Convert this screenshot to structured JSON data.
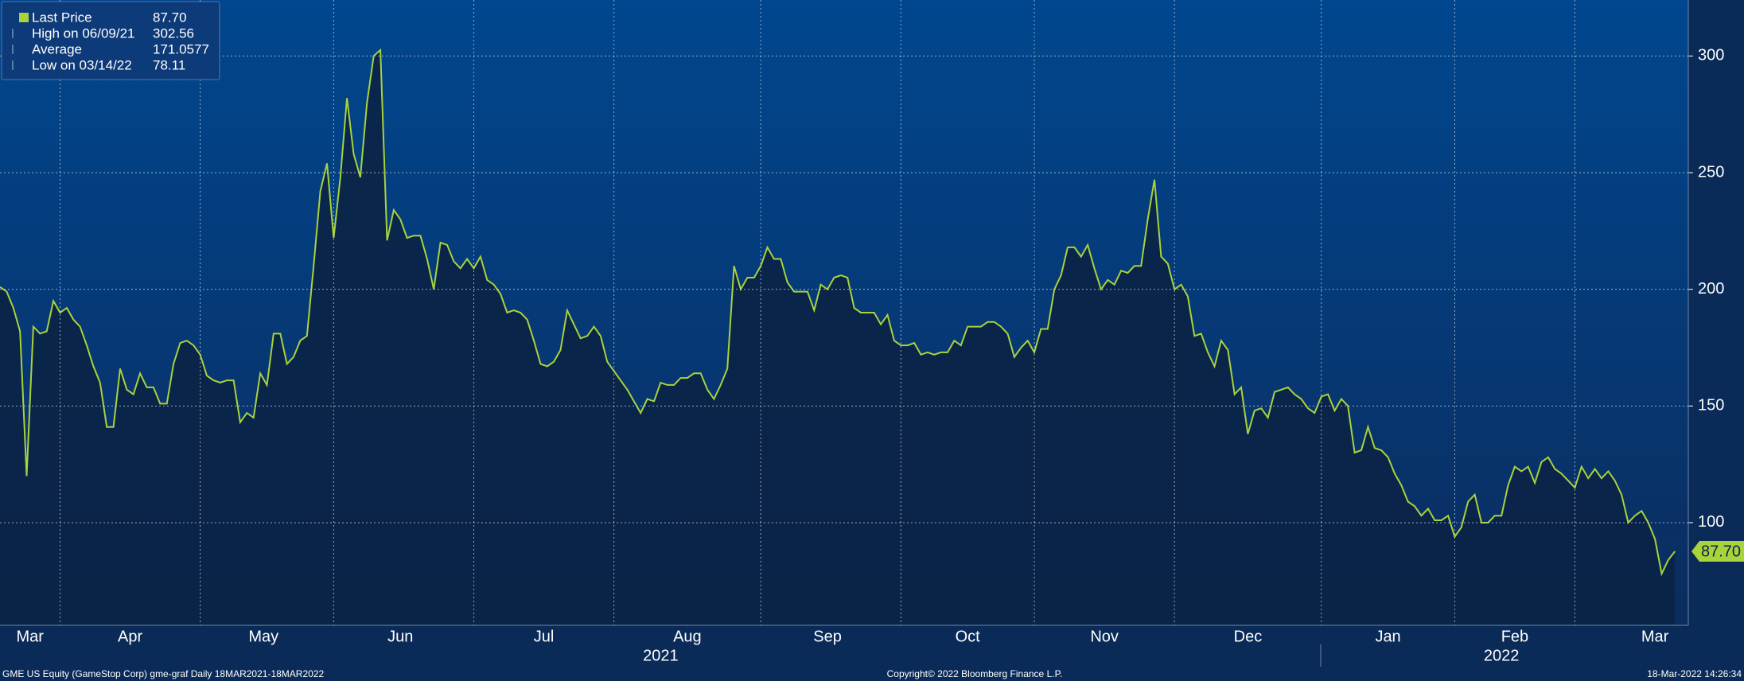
{
  "chart_data": {
    "type": "line",
    "legend": [
      {
        "label": "Last Price",
        "value": "87.70"
      },
      {
        "label": "High on 06/09/21",
        "value": "302.56"
      },
      {
        "label": "Average",
        "value": "171.0577"
      },
      {
        "label": "Low on 03/14/22",
        "value": "78.11"
      }
    ],
    "series": [
      {
        "name": "Last Price",
        "color": "#a9d23c",
        "values": [
          201,
          199,
          192,
          182,
          120,
          184,
          181,
          182,
          195,
          190,
          192,
          187,
          184,
          176,
          167,
          160,
          141,
          141,
          166,
          157,
          155,
          164,
          158,
          158,
          151,
          151,
          168,
          177,
          178,
          176,
          172,
          163,
          161,
          160,
          161,
          161,
          143,
          147,
          145,
          164,
          159,
          181,
          181,
          168,
          171,
          178,
          180,
          210,
          242,
          254,
          222,
          248,
          282,
          258,
          248,
          280,
          300,
          302.56,
          221,
          234,
          230,
          222,
          223,
          223,
          213,
          200,
          220,
          219,
          212,
          209,
          213,
          209,
          214,
          204,
          202,
          198,
          190,
          191,
          190,
          187,
          178,
          168,
          167,
          169,
          174,
          191,
          185,
          179,
          180,
          184,
          180,
          169,
          165,
          161,
          157,
          152,
          147,
          153,
          152,
          160,
          159,
          159,
          162,
          162,
          164,
          164,
          157,
          153,
          159,
          166,
          210,
          200,
          205,
          205,
          210,
          218,
          213,
          213,
          203,
          199,
          199,
          199,
          191,
          202,
          200,
          205,
          206,
          205,
          192,
          190,
          190,
          190,
          185,
          189,
          178,
          176,
          176,
          177,
          172,
          173,
          172,
          173,
          173,
          178,
          176,
          184,
          184,
          184,
          186,
          186,
          184,
          181,
          171,
          175,
          178,
          173,
          183,
          183,
          200,
          206,
          218,
          218,
          214,
          219,
          209,
          200,
          204,
          202,
          208,
          207,
          210,
          210,
          230,
          247,
          214,
          211,
          200,
          202,
          197,
          180,
          181,
          173,
          167,
          178,
          174,
          155,
          158,
          138,
          148,
          149,
          145,
          156,
          157,
          158,
          155,
          153,
          149,
          147,
          154,
          155,
          148,
          153,
          150,
          130,
          131,
          141,
          132,
          131,
          128,
          121,
          116,
          109,
          107,
          103,
          106,
          101,
          101,
          103,
          94,
          98,
          109,
          112,
          100,
          100,
          103,
          103,
          116,
          124,
          122,
          124,
          117,
          126,
          128,
          123,
          121,
          118,
          115,
          124,
          119,
          123,
          119,
          122,
          118,
          112,
          100,
          103,
          105,
          100,
          93,
          78.11,
          84,
          87.7
        ]
      }
    ],
    "xlim": [
      0,
      253
    ],
    "xticks": [
      9,
      30,
      50,
      71,
      92,
      114,
      135,
      155,
      176,
      198,
      218,
      236
    ],
    "x_labels": [
      {
        "value": 4.5,
        "label": "Mar"
      },
      {
        "value": 19.5,
        "label": "Apr"
      },
      {
        "value": 39.5,
        "label": "May"
      },
      {
        "value": 60,
        "label": "Jun"
      },
      {
        "value": 81.5,
        "label": "Jul"
      },
      {
        "value": 103,
        "label": "Aug"
      },
      {
        "value": 124,
        "label": "Sep"
      },
      {
        "value": 145,
        "label": "Oct"
      },
      {
        "value": 165.5,
        "label": "Nov"
      },
      {
        "value": 187,
        "label": "Dec"
      },
      {
        "value": 208,
        "label": "Jan"
      },
      {
        "value": 227,
        "label": "Feb"
      },
      {
        "value": 248,
        "label": "Mar"
      }
    ],
    "year_labels": [
      {
        "value": 99,
        "label": "2021"
      },
      {
        "value": 225,
        "label": "2022"
      }
    ],
    "ylim": [
      56,
      324
    ],
    "yticks": [
      100,
      150,
      200,
      250,
      300
    ],
    "grid": true,
    "footer": {
      "left": "GME US Equity (GameStop Corp) gme-graf  Daily 18MAR2021-18MAR2022",
      "center": "Copyright© 2022 Bloomberg Finance L.P.",
      "right": "18-Mar-2022 14:26:34"
    }
  }
}
